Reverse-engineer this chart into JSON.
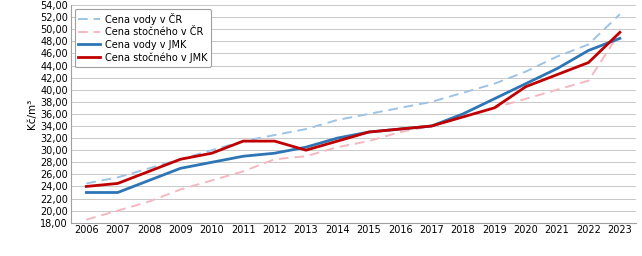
{
  "years": [
    2006,
    2007,
    2008,
    2009,
    2010,
    2011,
    2012,
    2013,
    2014,
    2015,
    2016,
    2017,
    2018,
    2019,
    2020,
    2021,
    2022,
    2023
  ],
  "cena_vody_cr": [
    24.5,
    25.5,
    27.0,
    28.5,
    30.0,
    31.5,
    32.5,
    33.5,
    35.0,
    36.0,
    37.0,
    38.0,
    39.5,
    41.0,
    43.0,
    45.5,
    47.5,
    52.5
  ],
  "cena_stocneho_cr": [
    18.5,
    20.0,
    21.5,
    23.5,
    25.0,
    26.5,
    28.5,
    29.0,
    30.5,
    31.5,
    33.0,
    34.0,
    35.5,
    37.0,
    38.5,
    40.0,
    41.5,
    49.5
  ],
  "cena_vody_jmk": [
    23.0,
    23.0,
    25.0,
    27.0,
    28.0,
    29.0,
    29.5,
    30.5,
    32.0,
    33.0,
    33.5,
    34.0,
    36.0,
    38.5,
    41.0,
    43.5,
    46.5,
    48.5
  ],
  "cena_stocneho_jmk": [
    24.0,
    24.5,
    26.5,
    28.5,
    29.5,
    31.5,
    31.5,
    30.0,
    31.5,
    33.0,
    33.5,
    34.0,
    35.5,
    37.0,
    40.5,
    42.5,
    44.5,
    49.5
  ],
  "ylim": [
    18.0,
    54.0
  ],
  "yticks": [
    18.0,
    20.0,
    22.0,
    24.0,
    26.0,
    28.0,
    30.0,
    32.0,
    34.0,
    36.0,
    38.0,
    40.0,
    42.0,
    44.0,
    46.0,
    48.0,
    50.0,
    52.0,
    54.0
  ],
  "ylabel": "Kč/m³",
  "color_vody_cr": "#9dc3e6",
  "color_stocneho_cr": "#f4b8c1",
  "color_vody_jmk": "#2e75b6",
  "color_stocneho_jmk": "#c00000",
  "legend_labels": [
    "Cena vody v ČR",
    "Cena stočného v ČR",
    "Cena vody v JMK",
    "Cena stočného v JMK"
  ],
  "background_color": "#ffffff",
  "grid_color": "#bfbfbf"
}
